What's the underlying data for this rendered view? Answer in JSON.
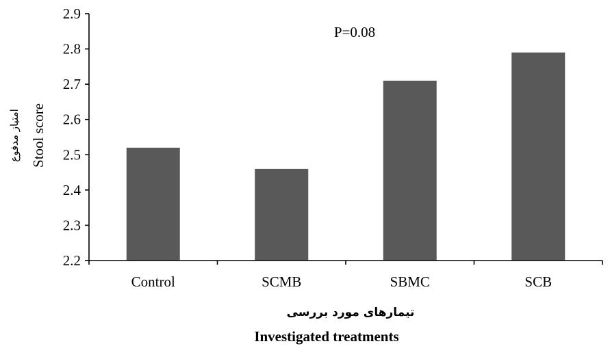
{
  "chart_data": {
    "type": "bar",
    "categories": [
      "Control",
      "SCMB",
      "SBMC",
      "SCB"
    ],
    "values": [
      2.52,
      2.46,
      2.71,
      2.79
    ],
    "ylim": [
      2.2,
      2.9
    ],
    "yticks": [
      "2.2",
      "2.3",
      "2.4",
      "2.5",
      "2.6",
      "2.7",
      "2.8",
      "2.9"
    ],
    "ylabel_fa": "امتیاز مدفوع",
    "ylabel_en": "Stool score",
    "xlabel_fa": "تیمارهای مورد بررسی",
    "xlabel_en": "Investigated treatments",
    "annotation": "P=0.08",
    "bar_color": "#595959",
    "grid": false,
    "legend": "none"
  }
}
